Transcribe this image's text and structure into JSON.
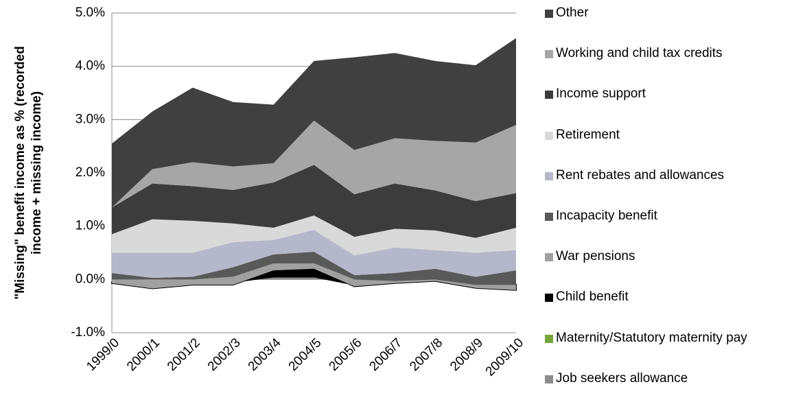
{
  "chart_data": {
    "type": "stacked_area",
    "y_label": [
      "\"Missing\" benefit income as % (recorded",
      "income + missing income)"
    ],
    "categories": [
      "1999/0",
      "2000/1",
      "2001/2",
      "2002/3",
      "2003/4",
      "2004/5",
      "2005/6",
      "2006/7",
      "2007/8",
      "2008/9",
      "2009/10"
    ],
    "ylim": [
      -1,
      5
    ],
    "yticks": [
      {
        "value": -1,
        "label": "-1.0%"
      },
      {
        "value": 0,
        "label": "0.0%"
      },
      {
        "value": 1,
        "label": "1.0%"
      },
      {
        "value": 2,
        "label": "2.0%"
      },
      {
        "value": 3,
        "label": "3.0%"
      },
      {
        "value": 4,
        "label": "4.0%"
      },
      {
        "value": 5,
        "label": "5.0%"
      }
    ],
    "grid": true,
    "legend": "right",
    "series": [
      {
        "name": "Job seekers allowance",
        "color": "#8c8c8c",
        "values": [
          -0.05,
          -0.1,
          -0.05,
          -0.05,
          0.05,
          0.05,
          -0.1,
          -0.05,
          -0.03,
          -0.1,
          -0.1
        ]
      },
      {
        "name": "Maternity/Statutory maternity pay",
        "color": "#77a33c",
        "values": [
          0,
          0,
          0,
          0,
          0,
          0,
          0,
          0,
          0,
          0,
          0
        ]
      },
      {
        "name": "Child benefit",
        "color": "#000000",
        "values": [
          -0.02,
          -0.07,
          -0.05,
          -0.05,
          0.12,
          0.15,
          -0.03,
          -0.02,
          0,
          -0.06,
          -0.1
        ]
      },
      {
        "name": "War pensions",
        "color": "#a0a0a0",
        "values": [
          0.07,
          0.17,
          0.1,
          0.15,
          0.13,
          0.1,
          0.13,
          0.04,
          0.03,
          0.06,
          0.1
        ]
      },
      {
        "name": "Incapacity benefit",
        "color": "#595959",
        "values": [
          0.12,
          0.03,
          0.05,
          0.18,
          0.17,
          0.22,
          0.08,
          0.15,
          0.2,
          0.15,
          0.27
        ]
      },
      {
        "name": "Rent rebates and allowances",
        "color": "#b4b8ca",
        "values": [
          0.38,
          0.47,
          0.45,
          0.47,
          0.27,
          0.41,
          0.37,
          0.48,
          0.35,
          0.45,
          0.38
        ]
      },
      {
        "name": "Retirement",
        "color": "#d9d9d9",
        "values": [
          0.35,
          0.63,
          0.6,
          0.35,
          0.23,
          0.27,
          0.35,
          0.35,
          0.37,
          0.28,
          0.42
        ]
      },
      {
        "name": "Income support",
        "color": "#3c3c3c",
        "values": [
          0.5,
          0.67,
          0.65,
          0.63,
          0.85,
          0.95,
          0.8,
          0.85,
          0.75,
          0.69,
          0.65
        ]
      },
      {
        "name": "Working and child tax credits",
        "color": "#a6a6a6",
        "values": [
          0,
          0.27,
          0.45,
          0.44,
          0.36,
          0.83,
          0.83,
          0.85,
          0.93,
          1.1,
          1.28
        ]
      },
      {
        "name": "Other",
        "color": "#404040",
        "values": [
          1.2,
          1.08,
          1.4,
          1.21,
          1.1,
          1.12,
          1.74,
          1.6,
          1.5,
          1.45,
          1.63
        ]
      }
    ]
  }
}
